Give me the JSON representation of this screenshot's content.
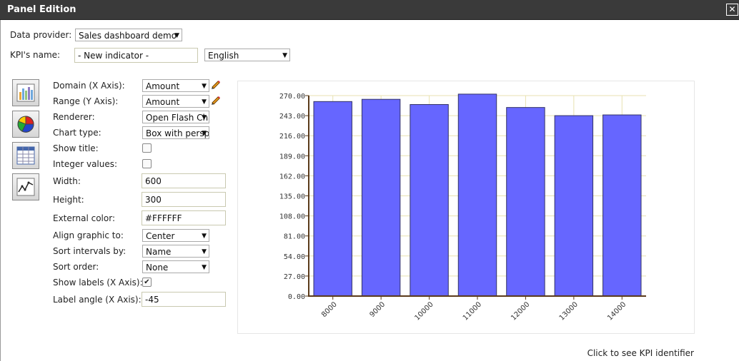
{
  "window": {
    "title": "Panel Edition"
  },
  "form": {
    "data_provider": {
      "label": "Data provider:",
      "value": "Sales dashboard demo"
    },
    "kpi_name": {
      "label": "KPI's name:",
      "value": "- New indicator -"
    },
    "language": {
      "value": "English"
    },
    "domain": {
      "label": "Domain (X Axis):",
      "value": "Amount"
    },
    "range": {
      "label": "Range (Y Axis):",
      "value": "Amount"
    },
    "renderer": {
      "label": "Renderer:",
      "value": "Open Flash Chart"
    },
    "chart_type": {
      "label": "Chart type:",
      "value": "Box with perspective"
    },
    "show_title": {
      "label": "Show title:"
    },
    "integer_values": {
      "label": "Integer values:"
    },
    "width": {
      "label": "Width:",
      "value": "600"
    },
    "height": {
      "label": "Height:",
      "value": "300"
    },
    "external_color": {
      "label": "External color:",
      "value": "#FFFFFF"
    },
    "align_graphic": {
      "label": "Align graphic to:",
      "value": "Center"
    },
    "sort_intervals": {
      "label": "Sort intervals by:",
      "value": "Name"
    },
    "sort_order": {
      "label": "Sort order:",
      "value": "None"
    },
    "show_labels": {
      "label": "Show labels (X Axis):",
      "check": "✔"
    },
    "label_angle": {
      "label": "Label angle (X Axis):",
      "value": "-45"
    }
  },
  "toolbar": {
    "icons": [
      "bar-chart-icon",
      "pie-chart-icon",
      "table-icon",
      "line-chart-icon"
    ]
  },
  "footer": {
    "kpi_identifier_link": "Click to see KPI identifier"
  },
  "colors": {
    "bar_fill": "#6666ff",
    "bar_stroke": "#333366",
    "grid": "#e8e2b0",
    "axis": "#5a3a1a"
  },
  "chart_data": {
    "type": "bar",
    "categories": [
      "8000",
      "9000",
      "10000",
      "11000",
      "12000",
      "13000",
      "14000"
    ],
    "values": [
      262,
      265,
      258,
      272,
      254,
      243,
      244
    ],
    "ylim": [
      0,
      270
    ],
    "yticks": [
      "0.00",
      "27.00",
      "54.00",
      "81.00",
      "108.00",
      "135.00",
      "162.00",
      "189.00",
      "216.00",
      "243.00",
      "270.00"
    ],
    "x_label_angle": -45,
    "grid": true
  }
}
